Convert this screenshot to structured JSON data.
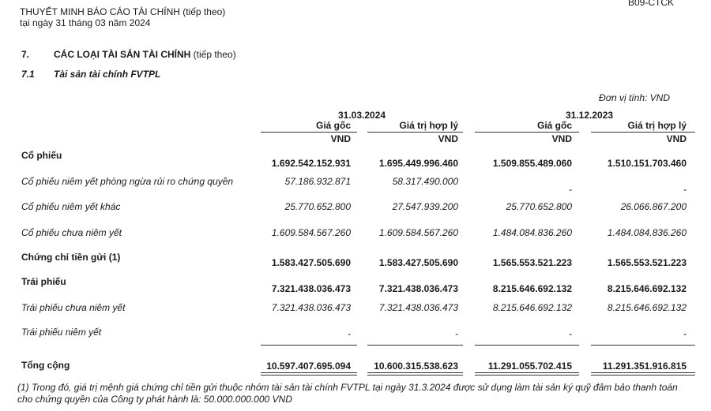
{
  "header": {
    "title": "THUYẾT MINH BÁO CÁO TÀI CHÍNH",
    "title_suffix": "(tiếp theo)",
    "date": "tại ngày 31 tháng 03 năm 2024",
    "form_code": "B09-CTCK"
  },
  "section": {
    "number": "7.",
    "title": "CÁC LOẠI TÀI SẢN TÀI CHÍNH",
    "title_suffix": "(tiếp theo)"
  },
  "subsection": {
    "number": "7.1",
    "title": "Tài sản tài chính FVTPL"
  },
  "unit": "Đơn vị tính: VND",
  "table": {
    "periods": [
      "31.03.2024",
      "31.12.2023"
    ],
    "columns": [
      "Giá gốc",
      "Giá trị hợp lý",
      "Giá gốc",
      "Giá trị hợp lý"
    ],
    "currency": [
      "VND",
      "VND",
      "VND",
      "VND"
    ],
    "rows": [
      {
        "label": "Cổ phiếu",
        "values": [
          "1.692.542.152.931",
          "1.695.449.996.460",
          "1.509.855.489.060",
          "1.510.151.703.460"
        ]
      },
      {
        "label": "Cổ phiếu niêm yết phòng ngừa rủi ro chứng quyền",
        "values": [
          "57.186.932.871",
          "58.317.490.000",
          "-",
          "-"
        ]
      },
      {
        "label": "Cổ phiếu niêm yết khác",
        "values": [
          "25.770.652.800",
          "27.547.939.200",
          "25.770.652.800",
          "26.066.867.200"
        ]
      },
      {
        "label": "Cổ phiếu chưa niêm yết",
        "values": [
          "1.609.584.567.260",
          "1.609.584.567.260",
          "1.484.084.836.260",
          "1.484.084.836.260"
        ]
      },
      {
        "label": "Chứng chỉ tiền gửi (1)",
        "values": [
          "1.583.427.505.690",
          "1.583.427.505.690",
          "1.565.553.521.223",
          "1.565.553.521.223"
        ]
      },
      {
        "label": "Trái phiếu",
        "values": [
          "7.321.438.036.473",
          "7.321.438.036.473",
          "8.215.646.692.132",
          "8.215.646.692.132"
        ]
      },
      {
        "label": "Trái phiếu chưa niêm yết",
        "values": [
          "7.321.438.036.473",
          "7.321.438.036.473",
          "8.215.646.692.132",
          "8.215.646.692.132"
        ]
      },
      {
        "label": "Trái phiếu niêm yết",
        "values": [
          "-",
          "-",
          "-",
          "-"
        ]
      }
    ],
    "total": {
      "label": "Tổng cộng",
      "values": [
        "10.597.407.695.094",
        "10.600.315.538.623",
        "11.291.055.702.415",
        "11.291.351.916.815"
      ]
    }
  },
  "footnote": {
    "line1": "(1) Trong đó, giá trị mệnh giá chứng chỉ tiền gửi thuộc nhóm tài sản tài chính FVTPL tại ngày 31.3.2024 được sử dụng làm tài sản ký quỹ đảm bảo thanh toán",
    "line2": "cho chứng quyền của Công ty phát hành là: 50.000.000.000 VND"
  }
}
